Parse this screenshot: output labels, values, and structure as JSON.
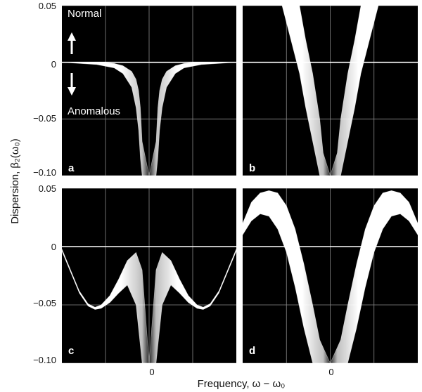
{
  "figure": {
    "ylabel": "Dispersion, β₂(ω₀)",
    "xlabel": "Frequency, ω − ω₀",
    "colors": {
      "background": "#000000",
      "band": "#ffffff",
      "grid": "#8a8a8a",
      "zero_line": "#ffffff"
    }
  },
  "chart_data": [
    {
      "type": "area",
      "panel": "a",
      "title": "",
      "xlim": [
        -1,
        1
      ],
      "ylim": [
        -0.1,
        0.05
      ],
      "x_ticks": [
        0
      ],
      "y_ticks": [
        0.05,
        0,
        -0.05,
        -0.1
      ],
      "x_tick_labels": [
        ""
      ],
      "y_tick_labels": [
        "0.05",
        "0",
        "−0.05",
        "−0.10"
      ],
      "grid": true,
      "annotations": [
        {
          "text": "Normal",
          "arrow": "up"
        },
        {
          "text": "Anomalous",
          "arrow": "down"
        }
      ],
      "x": [
        -1,
        -0.6,
        -0.4,
        -0.3,
        -0.2,
        -0.15,
        -0.12,
        -0.1,
        -0.08,
        0,
        0.08,
        0.1,
        0.12,
        0.15,
        0.2,
        0.3,
        0.4,
        0.6,
        1
      ],
      "band_upper": [
        0,
        0,
        -0.001,
        -0.003,
        -0.008,
        -0.015,
        -0.025,
        -0.04,
        -0.07,
        -0.1,
        -0.07,
        -0.04,
        -0.025,
        -0.015,
        -0.008,
        -0.003,
        -0.001,
        0,
        0
      ],
      "band_lower": [
        0,
        -0.002,
        -0.005,
        -0.01,
        -0.022,
        -0.04,
        -0.06,
        -0.085,
        -0.1,
        -0.1,
        -0.1,
        -0.085,
        -0.06,
        -0.04,
        -0.022,
        -0.01,
        -0.005,
        -0.002,
        0
      ]
    },
    {
      "type": "area",
      "panel": "b",
      "title": "",
      "xlim": [
        -1,
        1
      ],
      "ylim": [
        -0.1,
        0.05
      ],
      "x_ticks": [
        0
      ],
      "y_ticks": [
        0.05,
        0,
        -0.05,
        -0.1
      ],
      "grid": true,
      "x": [
        -0.55,
        -0.45,
        -0.35,
        -0.28,
        -0.2,
        -0.12,
        -0.08,
        0,
        0.08,
        0.12,
        0.2,
        0.28,
        0.35,
        0.45,
        0.55
      ],
      "band_upper": [
        0.05,
        0.05,
        0.05,
        0.02,
        -0.01,
        -0.05,
        -0.08,
        -0.1,
        -0.08,
        -0.05,
        -0.01,
        0.02,
        0.05,
        0.05,
        0.05
      ],
      "band_lower": [
        0.05,
        0.02,
        -0.01,
        -0.04,
        -0.07,
        -0.1,
        -0.1,
        -0.1,
        -0.1,
        -0.1,
        -0.07,
        -0.04,
        -0.01,
        0.02,
        0.05
      ]
    },
    {
      "type": "area",
      "panel": "c",
      "title": "",
      "xlim": [
        -1,
        1
      ],
      "ylim": [
        -0.1,
        0.05
      ],
      "x_ticks": [
        0
      ],
      "y_ticks": [
        0.05,
        0,
        -0.05,
        -0.1
      ],
      "x_tick_labels": [
        "0"
      ],
      "y_tick_labels": [
        "0.05",
        "0",
        "−0.05",
        "−0.10"
      ],
      "grid": true,
      "x": [
        -1,
        -0.9,
        -0.8,
        -0.7,
        -0.62,
        -0.55,
        -0.45,
        -0.35,
        -0.25,
        -0.15,
        -0.08,
        0,
        0.08,
        0.15,
        0.25,
        0.35,
        0.45,
        0.55,
        0.62,
        0.7,
        0.8,
        0.9,
        1
      ],
      "band_upper": [
        -0.002,
        -0.02,
        -0.038,
        -0.049,
        -0.052,
        -0.05,
        -0.042,
        -0.028,
        -0.012,
        -0.005,
        -0.02,
        -0.1,
        -0.02,
        -0.005,
        -0.012,
        -0.028,
        -0.042,
        -0.05,
        -0.052,
        -0.049,
        -0.038,
        -0.02,
        -0.002
      ],
      "band_lower": [
        -0.004,
        -0.022,
        -0.04,
        -0.051,
        -0.054,
        -0.053,
        -0.048,
        -0.04,
        -0.033,
        -0.05,
        -0.1,
        -0.1,
        -0.1,
        -0.05,
        -0.033,
        -0.04,
        -0.048,
        -0.053,
        -0.054,
        -0.051,
        -0.04,
        -0.022,
        -0.004
      ]
    },
    {
      "type": "area",
      "panel": "d",
      "title": "",
      "xlim": [
        -1,
        1
      ],
      "ylim": [
        -0.1,
        0.05
      ],
      "x_ticks": [
        0
      ],
      "y_ticks": [
        0.05,
        0,
        -0.05,
        -0.1
      ],
      "x_tick_labels": [
        "0"
      ],
      "grid": true,
      "x": [
        -1,
        -0.9,
        -0.8,
        -0.7,
        -0.6,
        -0.5,
        -0.4,
        -0.3,
        -0.2,
        -0.12,
        0,
        0.12,
        0.2,
        0.3,
        0.4,
        0.5,
        0.6,
        0.7,
        0.8,
        0.9,
        1
      ],
      "band_upper": [
        0.02,
        0.038,
        0.046,
        0.048,
        0.046,
        0.035,
        0.015,
        -0.015,
        -0.05,
        -0.08,
        -0.1,
        -0.08,
        -0.05,
        -0.015,
        0.015,
        0.035,
        0.046,
        0.048,
        0.046,
        0.038,
        0.02
      ],
      "band_lower": [
        0.01,
        0.022,
        0.028,
        0.026,
        0.015,
        -0.005,
        -0.035,
        -0.07,
        -0.1,
        -0.1,
        -0.1,
        -0.1,
        -0.1,
        -0.07,
        -0.035,
        -0.005,
        0.015,
        0.026,
        0.028,
        0.022,
        0.01
      ]
    }
  ]
}
